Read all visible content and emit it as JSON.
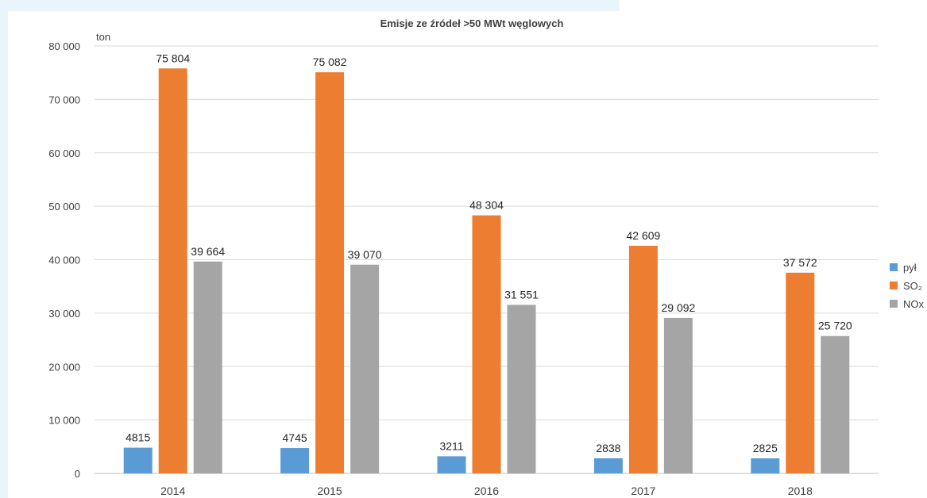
{
  "chart_data": {
    "type": "bar",
    "title": "Emisje ze źródeł >50 MWt  węglowych",
    "unit_label": "ton",
    "categories": [
      "2014",
      "2015",
      "2016",
      "2017",
      "2018"
    ],
    "series": [
      {
        "name": "pył",
        "color": "#5b9bd5",
        "values": [
          4815,
          4745,
          3211,
          2838,
          2825
        ],
        "labels": [
          "4815",
          "4745",
          "3211",
          "2838",
          "2825"
        ]
      },
      {
        "name": "SO₂",
        "color": "#ed7d31",
        "values": [
          75804,
          75082,
          48304,
          42609,
          37572
        ],
        "labels": [
          "75 804",
          "75 082",
          "48 304",
          "42 609",
          "37 572"
        ]
      },
      {
        "name": "NOx",
        "color": "#a5a5a5",
        "values": [
          39664,
          39070,
          31551,
          29092,
          25720
        ],
        "labels": [
          "39 664",
          "39 070",
          "31 551",
          "29 092",
          "25 720"
        ]
      }
    ],
    "ylim": [
      0,
      80000
    ],
    "yticks": [
      0,
      10000,
      20000,
      30000,
      40000,
      50000,
      60000,
      70000,
      80000
    ],
    "ytick_labels": [
      "0",
      "10 000",
      "20 000",
      "30 000",
      "40 000",
      "50 000",
      "60 000",
      "70 000",
      "80 000"
    ],
    "grid": true,
    "legend_position": "right"
  }
}
